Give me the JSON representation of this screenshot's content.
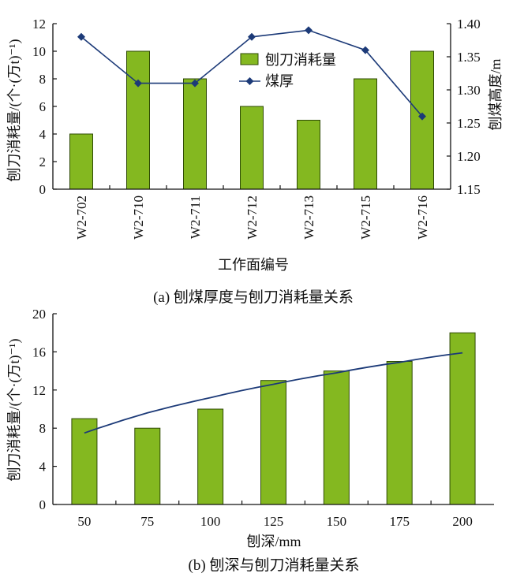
{
  "colors": {
    "bar_fill": "#84b820",
    "bar_stroke": "#2e4a05",
    "line": "#1c3a78",
    "marker": "#1c3a78",
    "axis": "#111111",
    "text": "#111111"
  },
  "chart_data": [
    {
      "type": "bar",
      "caption": "(a)  刨煤厚度与刨刀消耗量关系",
      "xlabel": "工作面编号",
      "ylabel": "刨刀消耗量/(个·(万t)⁻¹)",
      "y2label": "刨煤高度/m",
      "categories": [
        "W2-702",
        "W2-710",
        "W2-711",
        "W2-712",
        "W2-713",
        "W2-715",
        "W2-716"
      ],
      "ylim": [
        0,
        12
      ],
      "yticks": [
        "0",
        "2",
        "4",
        "6",
        "8",
        "10",
        "12"
      ],
      "y2lim": [
        1.15,
        1.4
      ],
      "y2ticks": [
        "1.15",
        "1.20",
        "1.25",
        "1.30",
        "1.35",
        "1.40"
      ],
      "series": [
        {
          "name": "刨刀消耗量",
          "type": "bar",
          "values": [
            4,
            10,
            8,
            6,
            5,
            8,
            10
          ]
        },
        {
          "name": "煤厚",
          "type": "line",
          "axis": "right",
          "marker": "diamond",
          "values": [
            1.38,
            1.31,
            1.31,
            1.38,
            1.39,
            1.36,
            1.26
          ]
        }
      ],
      "legend": "top-center",
      "grid": false
    },
    {
      "type": "bar",
      "caption": "(b)  刨深与刨刀消耗量关系",
      "xlabel": "刨深/mm",
      "ylabel": "刨刀消耗量/(个·(万t)⁻¹)",
      "categories": [
        "50",
        "75",
        "100",
        "125",
        "150",
        "175",
        "200"
      ],
      "ylim": [
        0,
        20
      ],
      "yticks": [
        "0",
        "4",
        "8",
        "12",
        "16",
        "20"
      ],
      "series": [
        {
          "type": "bar",
          "values": [
            9,
            8,
            10,
            13,
            14,
            15,
            18
          ]
        },
        {
          "type": "trendline",
          "values": [
            7.5,
            9.6,
            11.2,
            12.6,
            13.8,
            14.9,
            15.9
          ]
        }
      ],
      "grid": false
    }
  ]
}
